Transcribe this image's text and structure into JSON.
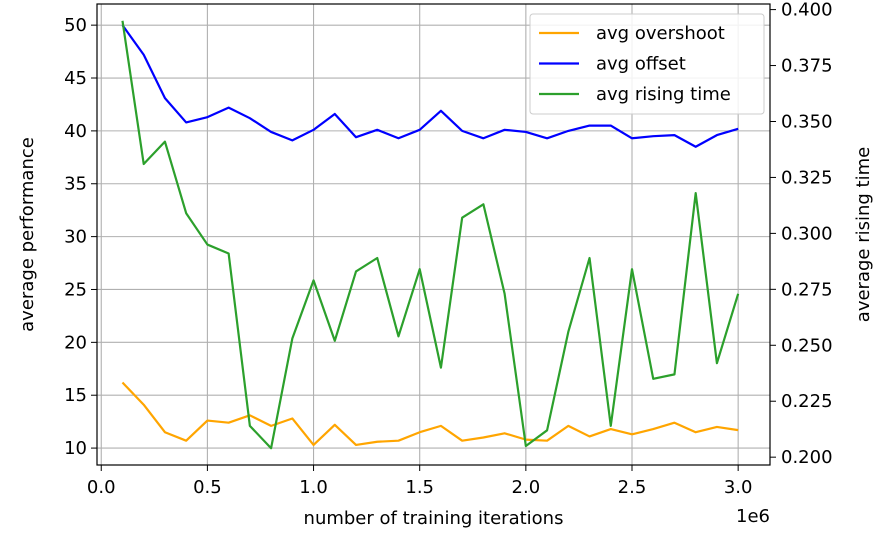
{
  "chart_data": {
    "type": "line",
    "xlabel": "number of training iterations",
    "x_offset_text": "1e6",
    "ylabel_left": "average performance",
    "ylabel_right": "average rising time",
    "xlim": [
      -0.02,
      3.15
    ],
    "ylim_left": [
      8.4,
      52.0
    ],
    "ylim_right": [
      0.1965,
      0.4025
    ],
    "x_ticks": [
      0.0,
      0.5,
      1.0,
      1.5,
      2.0,
      2.5,
      3.0
    ],
    "x_tick_labels": [
      "0.0",
      "0.5",
      "1.0",
      "1.5",
      "2.0",
      "2.5",
      "3.0"
    ],
    "y_left_ticks": [
      10,
      15,
      20,
      25,
      30,
      35,
      40,
      45,
      50
    ],
    "y_left_tick_labels": [
      "10",
      "15",
      "20",
      "25",
      "30",
      "35",
      "40",
      "45",
      "50"
    ],
    "y_right_ticks": [
      0.2,
      0.225,
      0.25,
      0.275,
      0.3,
      0.325,
      0.35,
      0.375,
      0.4
    ],
    "y_right_tick_labels": [
      "0.200",
      "0.225",
      "0.250",
      "0.275",
      "0.300",
      "0.325",
      "0.350",
      "0.375",
      "0.400"
    ],
    "grid": true,
    "legend_position": "top-right",
    "x": [
      0.1,
      0.2,
      0.3,
      0.4,
      0.5,
      0.6,
      0.7,
      0.8,
      0.9,
      1.0,
      1.1,
      1.2,
      1.3,
      1.4,
      1.5,
      1.6,
      1.7,
      1.8,
      1.9,
      2.0,
      2.1,
      2.2,
      2.3,
      2.4,
      2.5,
      2.6,
      2.7,
      2.8,
      2.9,
      3.0
    ],
    "series": [
      {
        "name": "avg overshoot",
        "axis": "left",
        "color": "#ffa500",
        "values": [
          16.2,
          14.1,
          11.5,
          10.7,
          12.6,
          12.4,
          13.1,
          12.1,
          12.8,
          10.3,
          12.2,
          10.3,
          10.6,
          10.7,
          11.5,
          12.1,
          10.7,
          11.0,
          11.4,
          10.8,
          10.7,
          12.1,
          11.1,
          11.8,
          11.3,
          11.8,
          12.4,
          11.5,
          12.0,
          11.7
        ]
      },
      {
        "name": "avg offset",
        "axis": "left",
        "color": "#0000ff",
        "values": [
          50.0,
          47.2,
          43.1,
          40.8,
          41.3,
          42.2,
          41.2,
          39.9,
          39.1,
          40.1,
          41.6,
          39.4,
          40.1,
          39.3,
          40.1,
          41.9,
          40.0,
          39.3,
          40.1,
          39.9,
          39.3,
          40.0,
          40.5,
          40.5,
          39.3,
          39.5,
          39.6,
          38.5,
          39.6,
          40.2
        ]
      },
      {
        "name": "avg rising time",
        "axis": "right",
        "color": "#2ca02c",
        "values": [
          0.395,
          0.331,
          0.341,
          0.309,
          0.295,
          0.291,
          0.214,
          0.204,
          0.253,
          0.279,
          0.252,
          0.283,
          0.289,
          0.254,
          0.284,
          0.24,
          0.307,
          0.313,
          0.273,
          0.205,
          0.212,
          0.256,
          0.289,
          0.214,
          0.284,
          0.235,
          0.237,
          0.318,
          0.242,
          0.273
        ]
      }
    ]
  }
}
